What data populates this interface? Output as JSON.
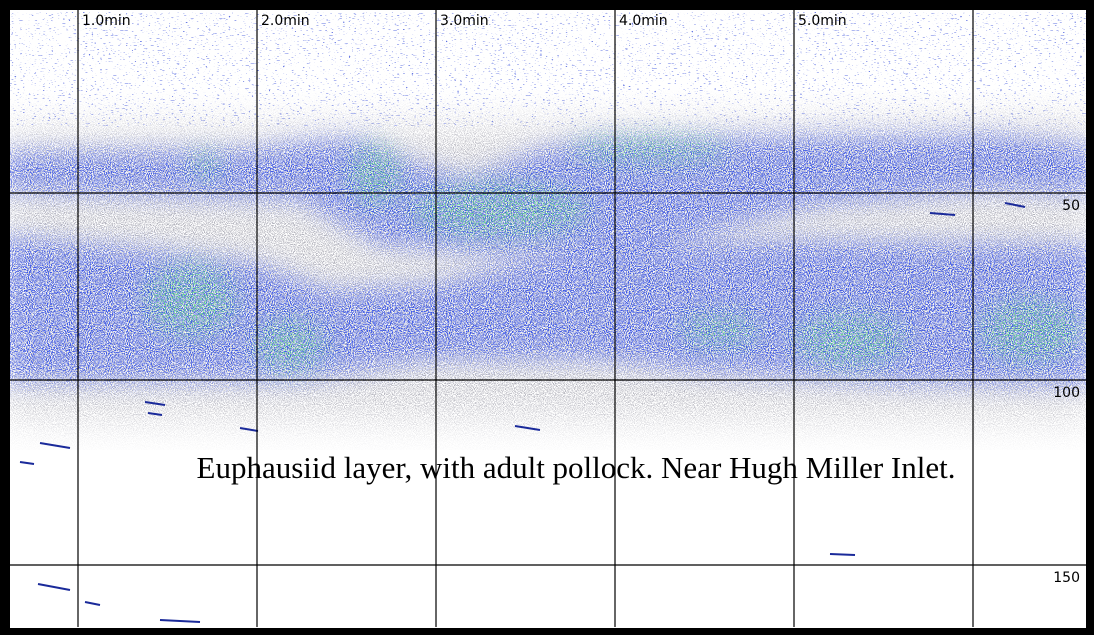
{
  "time_labels": [
    "1.0min",
    "2.0min",
    "3.0min",
    "4.0min",
    "5.0min"
  ],
  "depth_labels": [
    "50",
    "100",
    "150"
  ],
  "caption": "Euphausiid layer, with adult pollock. Near Hugh Miller Inlet."
}
